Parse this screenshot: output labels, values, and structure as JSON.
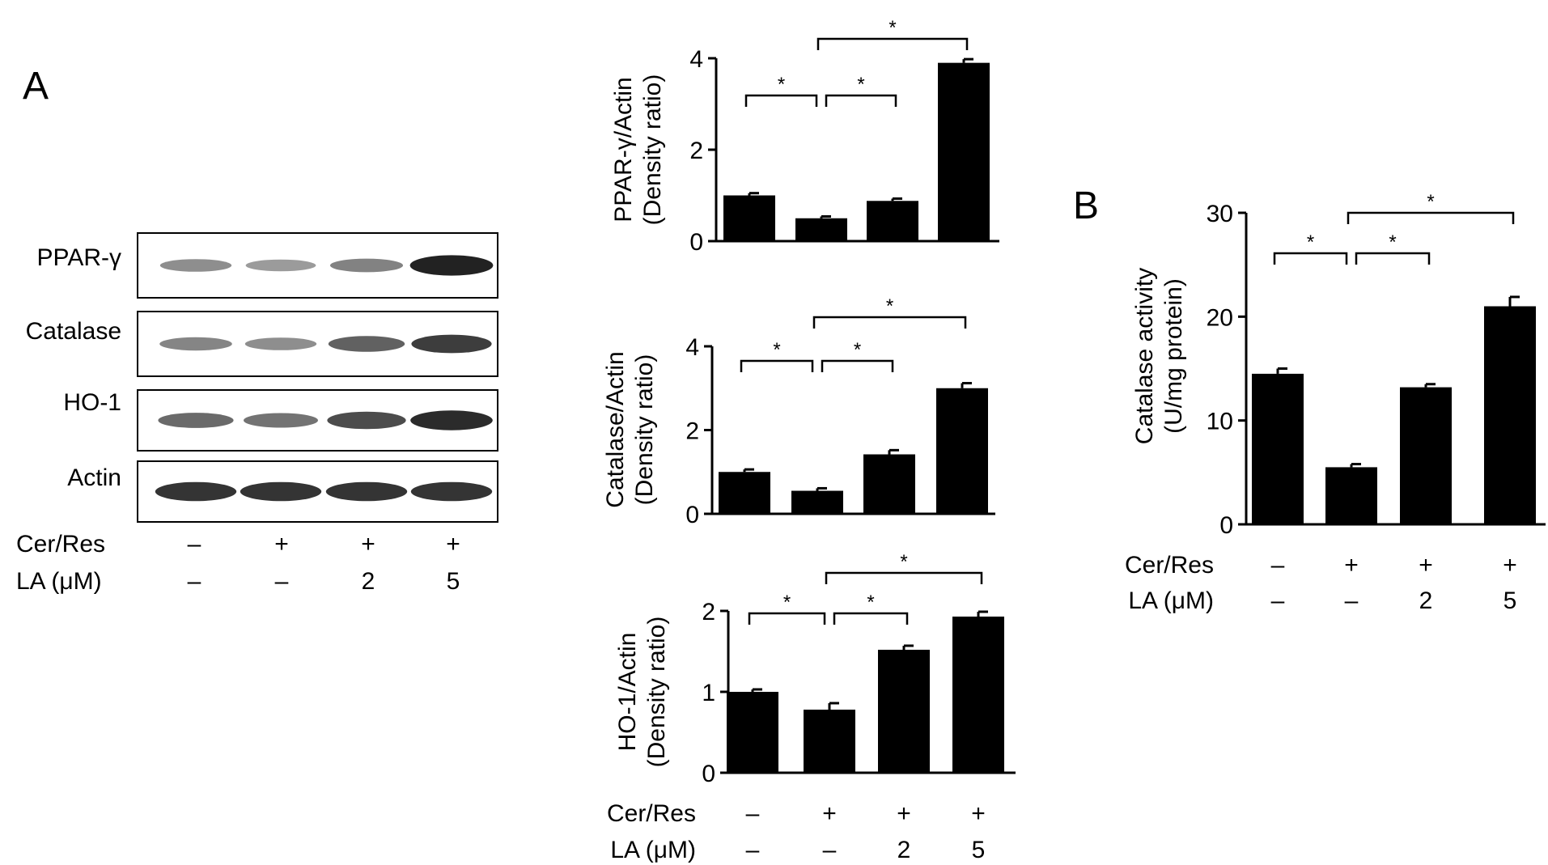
{
  "panels": {
    "a_label": "A",
    "b_label": "B"
  },
  "blot": {
    "bands": [
      {
        "label": "PPAR-γ",
        "intensity": [
          0.35,
          0.28,
          0.42,
          0.95
        ]
      },
      {
        "label": "Catalase",
        "intensity": [
          0.4,
          0.35,
          0.6,
          0.8
        ]
      },
      {
        "label": "HO-1",
        "intensity": [
          0.55,
          0.5,
          0.72,
          0.9
        ]
      },
      {
        "label": "Actin",
        "intensity": [
          0.85,
          0.85,
          0.85,
          0.85
        ]
      }
    ],
    "cer_res_label": "Cer/Res",
    "la_label": "LA (μM)",
    "cer_res": [
      "–",
      "+",
      "+",
      "+"
    ],
    "la": [
      "–",
      "–",
      "2",
      "5"
    ]
  },
  "chart_data": [
    {
      "type": "bar",
      "panel": "A",
      "ylabel_line1": "PPAR-γ/Actin",
      "ylabel_line2": "(Density ratio)",
      "ylim": [
        0,
        4
      ],
      "yticks": [
        "0",
        "2",
        "4"
      ],
      "values": [
        1.0,
        0.5,
        0.88,
        3.9
      ],
      "errors": [
        0.05,
        0.04,
        0.05,
        0.08
      ],
      "significance": [
        {
          "from": 0,
          "to": 1,
          "label": "*",
          "level": 1
        },
        {
          "from": 1,
          "to": 2,
          "label": "*",
          "level": 1
        },
        {
          "from": 1,
          "to": 3,
          "label": "*",
          "level": 2
        }
      ]
    },
    {
      "type": "bar",
      "panel": "A",
      "ylabel_line1": "Catalase/Actin",
      "ylabel_line2": "(Density ratio)",
      "ylim": [
        0,
        4
      ],
      "yticks": [
        "0",
        "2",
        "4"
      ],
      "values": [
        1.0,
        0.55,
        1.42,
        3.0
      ],
      "errors": [
        0.06,
        0.06,
        0.1,
        0.12
      ],
      "significance": [
        {
          "from": 0,
          "to": 1,
          "label": "*",
          "level": 1
        },
        {
          "from": 1,
          "to": 2,
          "label": "*",
          "level": 1
        },
        {
          "from": 1,
          "to": 3,
          "label": "*",
          "level": 2
        }
      ]
    },
    {
      "type": "bar",
      "panel": "A",
      "ylabel_line1": "HO-1/Actin",
      "ylabel_line2": "(Density ratio)",
      "ylim": [
        0,
        2
      ],
      "yticks": [
        "0",
        "1",
        "2"
      ],
      "values": [
        1.0,
        0.78,
        1.52,
        1.93
      ],
      "errors": [
        0.03,
        0.08,
        0.05,
        0.06
      ],
      "significance": [
        {
          "from": 0,
          "to": 1,
          "label": "*",
          "level": 1
        },
        {
          "from": 1,
          "to": 2,
          "label": "*",
          "level": 1
        },
        {
          "from": 1,
          "to": 3,
          "label": "*",
          "level": 2
        }
      ],
      "cer_res_label": "Cer/Res",
      "la_label": "LA (μM)",
      "cer_res": [
        "–",
        "+",
        "+",
        "+"
      ],
      "la": [
        "–",
        "–",
        "2",
        "5"
      ]
    },
    {
      "type": "bar",
      "panel": "B",
      "ylabel_line1": "Catalase activity",
      "ylabel_line2": "(U/mg protein)",
      "ylim": [
        0,
        30
      ],
      "yticks": [
        "0",
        "10",
        "20",
        "30"
      ],
      "values": [
        14.5,
        5.5,
        13.2,
        21.0
      ],
      "errors": [
        0.5,
        0.3,
        0.3,
        0.9
      ],
      "significance": [
        {
          "from": 0,
          "to": 1,
          "label": "*",
          "level": 1
        },
        {
          "from": 1,
          "to": 2,
          "label": "*",
          "level": 1
        },
        {
          "from": 1,
          "to": 3,
          "label": "*",
          "level": 2
        }
      ],
      "cer_res_label": "Cer/Res",
      "la_label": "LA (μM)",
      "cer_res": [
        "–",
        "+",
        "+",
        "+"
      ],
      "la": [
        "–",
        "–",
        "2",
        "5"
      ]
    }
  ]
}
